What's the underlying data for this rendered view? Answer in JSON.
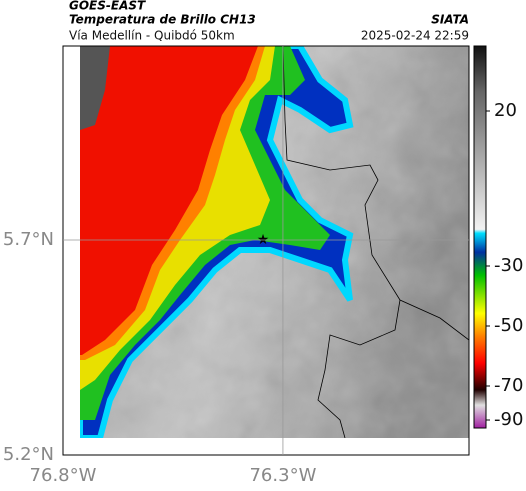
{
  "header": {
    "source": "GOES-EAST",
    "product": "Temperatura de Brillo CH13",
    "agency": "SIATA",
    "route": "Vía Medellín - Quibdó 50km",
    "timestamp": "2025-02-24 22:59"
  },
  "map": {
    "xlim": [
      -76.8,
      -75.877
    ],
    "ylim": [
      5.2,
      6.151
    ],
    "xticks": [
      {
        "value": -76.8,
        "label": "76.8°W"
      },
      {
        "value": -76.3,
        "label": "76.3°W"
      }
    ],
    "yticks": [
      {
        "value": 5.2,
        "label": "5.2°N"
      },
      {
        "value": 5.7,
        "label": "5.7°N"
      }
    ],
    "grid": true
  },
  "colorbar": {
    "ticks": [
      20,
      -30,
      -50,
      -70,
      -90
    ]
  }
}
